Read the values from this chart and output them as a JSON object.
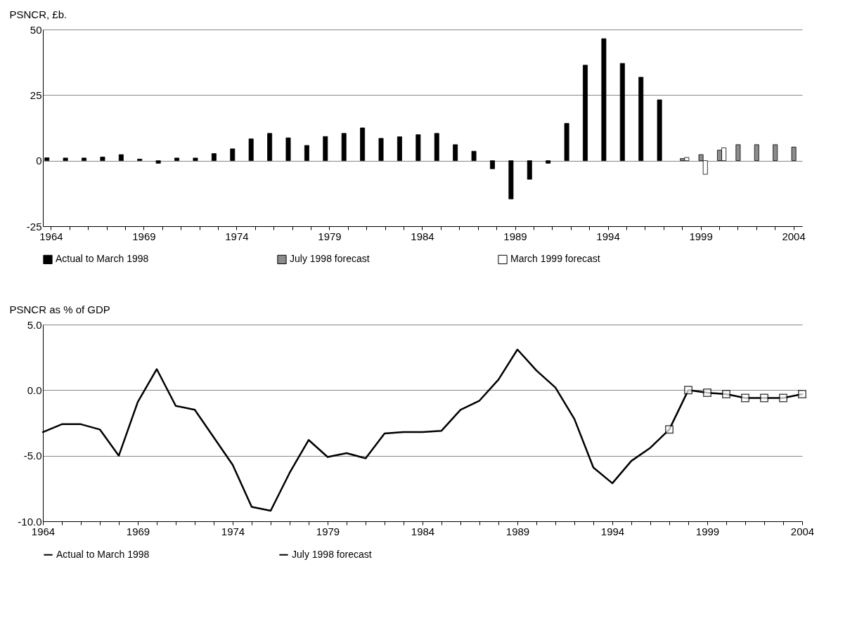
{
  "chart_data": [
    {
      "type": "bar",
      "ylabel": "PSNCR, £b.",
      "categories": [
        "1964",
        null,
        null,
        null,
        null,
        "1969",
        null,
        null,
        null,
        null,
        "1974",
        null,
        null,
        null,
        null,
        "1979",
        null,
        null,
        null,
        null,
        "1984",
        null,
        null,
        null,
        null,
        "1989",
        null,
        null,
        null,
        null,
        "1994",
        null,
        null,
        null,
        null,
        "1999",
        null,
        null,
        null,
        null,
        "2004"
      ],
      "series": [
        {
          "name": "Actual to March 1998",
          "color": "#000000",
          "values": [
            1.1,
            1.0,
            1.0,
            1.4,
            2.3,
            0.6,
            -1.0,
            1.0,
            1.0,
            2.7,
            4.5,
            8.3,
            10.4,
            8.7,
            5.8,
            9.2,
            10.4,
            12.5,
            8.5,
            9.1,
            9.9,
            10.4,
            6.1,
            3.6,
            -3.1,
            -14.6,
            -7.1,
            -1.0,
            14.2,
            36.4,
            46.5,
            37.1,
            31.8,
            23.2,
            null,
            null,
            null,
            null,
            null,
            null,
            null
          ]
        },
        {
          "name": "July 1998 forecast",
          "color": "#8c8c8c",
          "values": [
            null,
            null,
            null,
            null,
            null,
            null,
            null,
            null,
            null,
            null,
            null,
            null,
            null,
            null,
            null,
            null,
            null,
            null,
            null,
            null,
            null,
            null,
            null,
            null,
            null,
            null,
            null,
            null,
            null,
            null,
            null,
            null,
            null,
            null,
            0.8,
            2.3,
            4.0,
            6.1,
            6.1,
            6.1,
            5.2
          ]
        },
        {
          "name": "March 1999 forecast",
          "color": "#ffffff",
          "values": [
            null,
            null,
            null,
            null,
            null,
            null,
            null,
            null,
            null,
            null,
            null,
            null,
            null,
            null,
            null,
            null,
            null,
            null,
            null,
            null,
            null,
            null,
            null,
            null,
            null,
            null,
            null,
            null,
            null,
            null,
            null,
            null,
            null,
            null,
            1.2,
            -5.2,
            4.9,
            null,
            null,
            null,
            null
          ]
        }
      ],
      "ylim": [
        -25,
        50
      ],
      "yticks": [
        -25,
        0,
        25,
        50
      ],
      "grid": "y",
      "legend": "bottom"
    },
    {
      "type": "line",
      "ylabel": "PSNCR as % of GDP",
      "xlim": [
        1964,
        2004
      ],
      "xticks": [
        1964,
        {
          "value": 1965,
          "label": null
        },
        {
          "value": 1966,
          "label": null
        },
        {
          "value": 1967,
          "label": null
        },
        {
          "value": 1968,
          "label": null
        },
        1969,
        {
          "value": 1970,
          "label": null
        },
        {
          "value": 1971,
          "label": null
        },
        {
          "value": 1972,
          "label": null
        },
        {
          "value": 1973,
          "label": null
        },
        1974,
        {
          "value": 1975,
          "label": null
        },
        {
          "value": 1976,
          "label": null
        },
        {
          "value": 1977,
          "label": null
        },
        {
          "value": 1978,
          "label": null
        },
        1979,
        {
          "value": 1980,
          "label": null
        },
        {
          "value": 1981,
          "label": null
        },
        {
          "value": 1982,
          "label": null
        },
        {
          "value": 1983,
          "label": null
        },
        1984,
        {
          "value": 1985,
          "label": null
        },
        {
          "value": 1986,
          "label": null
        },
        {
          "value": 1987,
          "label": null
        },
        {
          "value": 1988,
          "label": null
        },
        1989,
        {
          "value": 1990,
          "label": null
        },
        {
          "value": 1991,
          "label": null
        },
        {
          "value": 1992,
          "label": null
        },
        {
          "value": 1993,
          "label": null
        },
        1994,
        {
          "value": 1995,
          "label": null
        },
        {
          "value": 1996,
          "label": null
        },
        {
          "value": 1997,
          "label": null
        },
        {
          "value": 1998,
          "label": null
        },
        1999,
        {
          "value": 2000,
          "label": null
        },
        {
          "value": 2001,
          "label": null
        },
        {
          "value": 2002,
          "label": null
        },
        {
          "value": 2003,
          "label": null
        },
        2004
      ],
      "series": [
        {
          "name": "Actual to March 1998",
          "color": "#000000",
          "x": [
            1964,
            1965,
            1966,
            1967,
            1968,
            1969,
            1970,
            1971,
            1972,
            1973,
            1974,
            1975,
            1976,
            1977,
            1978,
            1979,
            1980,
            1981,
            1982,
            1983,
            1984,
            1985,
            1986,
            1987,
            1988,
            1989,
            1990,
            1991,
            1992,
            1993,
            1994,
            1995,
            1996,
            1997
          ],
          "values": [
            -3.2,
            -2.6,
            -2.6,
            -3.0,
            -5.0,
            -0.9,
            1.6,
            -1.2,
            -1.5,
            -3.6,
            -5.7,
            -8.9,
            -9.2,
            -6.3,
            -3.8,
            -5.1,
            -4.8,
            -5.2,
            -3.3,
            -3.2,
            -3.2,
            -3.1,
            -1.5,
            -0.8,
            0.8,
            3.1,
            1.5,
            0.2,
            -2.2,
            -5.9,
            -7.1,
            -5.4,
            -4.4,
            -3.0
          ]
        },
        {
          "name": "July 1998 forecast",
          "color": "#000000",
          "marker": "square",
          "x": [
            1997,
            1998,
            1999,
            2000,
            2001,
            2002,
            2003,
            2004
          ],
          "values": [
            -3.0,
            0.0,
            -0.2,
            -0.3,
            -0.6,
            -0.6,
            -0.6,
            -0.3
          ]
        }
      ],
      "ylim": [
        -10,
        5
      ],
      "yticks": [
        {
          "value": -10,
          "label": "-10.0"
        },
        {
          "value": -5,
          "label": "-5.0"
        },
        {
          "value": 0,
          "label": "0.0"
        },
        {
          "value": 5,
          "label": "5.0"
        }
      ],
      "grid": "y",
      "legend": "bottom"
    }
  ]
}
